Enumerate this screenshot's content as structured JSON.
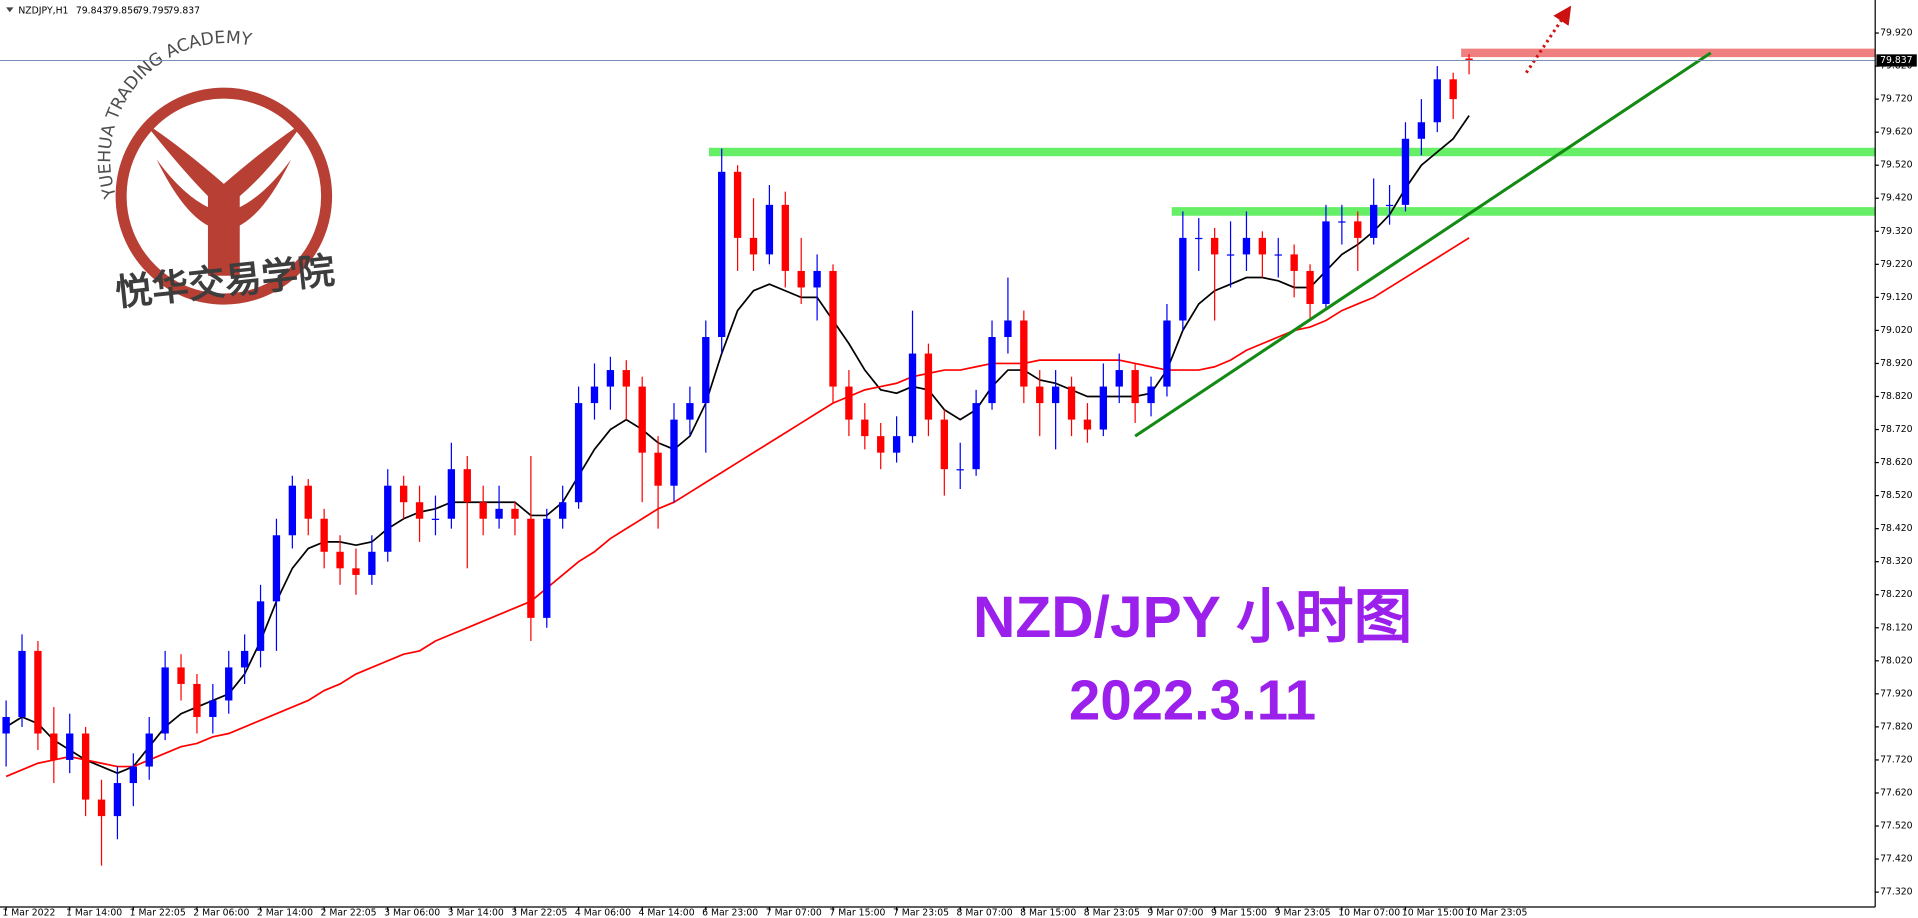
{
  "chart_data": {
    "type": "candlestick",
    "symbol": "NZDJPY,H1",
    "title": "NZD/JPY 小时图",
    "subtitle": "2022.3.11",
    "logo_text": "YUEHUA TRADING ACADEMY",
    "logo_name": "悦华交易学院",
    "up_color": "#0000ff",
    "down_color": "#ff0000",
    "categories": [
      "1 Mar 2022",
      null,
      null,
      null,
      "1 Mar 14:00",
      null,
      null,
      null,
      "1 Mar 22:05",
      null,
      null,
      null,
      "2 Mar 06:00",
      null,
      null,
      null,
      "2 Mar 14:00",
      null,
      null,
      null,
      "2 Mar 22:05",
      null,
      null,
      null,
      "3 Mar 06:00",
      null,
      null,
      null,
      "3 Mar 14:00",
      null,
      null,
      null,
      "3 Mar 22:05",
      null,
      null,
      null,
      "4 Mar 06:00",
      null,
      null,
      null,
      "4 Mar 14:00",
      null,
      null,
      null,
      "6 Mar 23:00",
      null,
      null,
      null,
      "7 Mar 07:00",
      null,
      null,
      null,
      "7 Mar 15:00",
      null,
      null,
      null,
      "7 Mar 23:05",
      null,
      null,
      null,
      "8 Mar 07:00",
      null,
      null,
      null,
      "8 Mar 15:00",
      null,
      null,
      null,
      "8 Mar 23:05",
      null,
      null,
      null,
      "9 Mar 07:00",
      null,
      null,
      null,
      "9 Mar 15:00",
      null,
      null,
      null,
      "9 Mar 23:05",
      null,
      null,
      null,
      "10 Mar 07:00",
      null,
      null,
      null,
      "10 Mar 15:00",
      null,
      null,
      null,
      "10 Mar 23:05"
    ],
    "ohlc": [
      [
        77.8,
        77.9,
        77.7,
        77.85
      ],
      [
        77.85,
        78.1,
        77.82,
        78.05
      ],
      [
        78.05,
        78.08,
        77.75,
        77.8
      ],
      [
        77.8,
        77.88,
        77.65,
        77.72
      ],
      [
        77.72,
        77.86,
        77.68,
        77.8
      ],
      [
        77.8,
        77.82,
        77.55,
        77.6
      ],
      [
        77.6,
        77.66,
        77.4,
        77.55
      ],
      [
        77.55,
        77.7,
        77.48,
        77.65
      ],
      [
        77.65,
        77.74,
        77.58,
        77.7
      ],
      [
        77.7,
        77.85,
        77.66,
        77.8
      ],
      [
        77.8,
        78.05,
        77.78,
        78.0
      ],
      [
        78.0,
        78.04,
        77.9,
        77.95
      ],
      [
        77.95,
        77.98,
        77.8,
        77.85
      ],
      [
        77.85,
        77.95,
        77.8,
        77.9
      ],
      [
        77.9,
        78.05,
        77.86,
        78.0
      ],
      [
        78.0,
        78.1,
        77.95,
        78.05
      ],
      [
        78.05,
        78.25,
        78.0,
        78.2
      ],
      [
        78.2,
        78.45,
        78.05,
        78.4
      ],
      [
        78.4,
        78.58,
        78.36,
        78.55
      ],
      [
        78.55,
        78.57,
        78.4,
        78.45
      ],
      [
        78.45,
        78.48,
        78.3,
        78.35
      ],
      [
        78.35,
        78.4,
        78.25,
        78.3
      ],
      [
        78.3,
        78.36,
        78.22,
        78.28
      ],
      [
        78.28,
        78.4,
        78.25,
        78.35
      ],
      [
        78.35,
        78.6,
        78.32,
        78.55
      ],
      [
        78.55,
        78.58,
        78.45,
        78.5
      ],
      [
        78.5,
        78.55,
        78.38,
        78.45
      ],
      [
        78.45,
        78.52,
        78.4,
        78.45
      ],
      [
        78.45,
        78.68,
        78.42,
        78.6
      ],
      [
        78.6,
        78.64,
        78.3,
        78.5
      ],
      [
        78.5,
        78.55,
        78.4,
        78.45
      ],
      [
        78.45,
        78.55,
        78.42,
        78.48
      ],
      [
        78.48,
        78.5,
        78.4,
        78.45
      ],
      [
        78.45,
        78.64,
        78.08,
        78.15
      ],
      [
        78.15,
        78.48,
        78.12,
        78.45
      ],
      [
        78.45,
        78.55,
        78.42,
        78.5
      ],
      [
        78.5,
        78.85,
        78.48,
        78.8
      ],
      [
        78.8,
        78.92,
        78.75,
        78.85
      ],
      [
        78.85,
        78.94,
        78.78,
        78.9
      ],
      [
        78.9,
        78.93,
        78.75,
        78.85
      ],
      [
        78.85,
        78.88,
        78.5,
        78.65
      ],
      [
        78.65,
        78.7,
        78.42,
        78.55
      ],
      [
        78.55,
        78.8,
        78.5,
        78.75
      ],
      [
        78.75,
        78.85,
        78.7,
        78.8
      ],
      [
        78.8,
        79.05,
        78.65,
        79.0
      ],
      [
        79.0,
        79.57,
        78.95,
        79.5
      ],
      [
        79.5,
        79.52,
        79.2,
        79.3
      ],
      [
        79.3,
        79.42,
        79.2,
        79.25
      ],
      [
        79.25,
        79.46,
        79.22,
        79.4
      ],
      [
        79.4,
        79.44,
        79.15,
        79.2
      ],
      [
        79.2,
        79.3,
        79.1,
        79.15
      ],
      [
        79.15,
        79.25,
        79.05,
        79.2
      ],
      [
        79.2,
        79.22,
        78.8,
        78.85
      ],
      [
        78.85,
        78.9,
        78.7,
        78.75
      ],
      [
        78.75,
        78.8,
        78.66,
        78.7
      ],
      [
        78.7,
        78.74,
        78.6,
        78.65
      ],
      [
        78.65,
        78.76,
        78.62,
        78.7
      ],
      [
        78.7,
        79.08,
        78.68,
        78.95
      ],
      [
        78.95,
        78.98,
        78.7,
        78.75
      ],
      [
        78.75,
        78.78,
        78.52,
        78.6
      ],
      [
        78.6,
        78.68,
        78.54,
        78.6
      ],
      [
        78.6,
        78.84,
        78.58,
        78.8
      ],
      [
        78.8,
        79.05,
        78.78,
        79.0
      ],
      [
        79.0,
        79.18,
        78.95,
        79.05
      ],
      [
        79.05,
        79.08,
        78.8,
        78.85
      ],
      [
        78.85,
        78.9,
        78.7,
        78.8
      ],
      [
        78.8,
        78.9,
        78.66,
        78.85
      ],
      [
        78.85,
        78.88,
        78.7,
        78.75
      ],
      [
        78.75,
        78.8,
        78.68,
        78.72
      ],
      [
        78.72,
        78.92,
        78.7,
        78.85
      ],
      [
        78.85,
        78.95,
        78.8,
        78.9
      ],
      [
        78.9,
        78.92,
        78.74,
        78.8
      ],
      [
        78.8,
        78.88,
        78.76,
        78.85
      ],
      [
        78.85,
        79.1,
        78.82,
        79.05
      ],
      [
        79.05,
        79.38,
        79.02,
        79.3
      ],
      [
        79.3,
        79.36,
        79.2,
        79.3
      ],
      [
        79.3,
        79.33,
        79.05,
        79.25
      ],
      [
        79.25,
        79.35,
        79.15,
        79.25
      ],
      [
        79.25,
        79.38,
        79.2,
        79.3
      ],
      [
        79.3,
        79.32,
        79.18,
        79.25
      ],
      [
        79.25,
        79.3,
        79.18,
        79.25
      ],
      [
        79.25,
        79.28,
        79.12,
        79.2
      ],
      [
        79.2,
        79.22,
        79.05,
        79.1
      ],
      [
        79.1,
        79.4,
        79.08,
        79.35
      ],
      [
        79.35,
        79.4,
        79.28,
        79.35
      ],
      [
        79.35,
        79.38,
        79.2,
        79.3
      ],
      [
        79.3,
        79.48,
        79.28,
        79.4
      ],
      [
        79.4,
        79.46,
        79.34,
        79.4
      ],
      [
        79.4,
        79.65,
        79.38,
        79.6
      ],
      [
        79.6,
        79.72,
        79.55,
        79.65
      ],
      [
        79.65,
        79.82,
        79.62,
        79.78
      ],
      [
        79.78,
        79.8,
        79.66,
        79.72
      ],
      [
        79.843,
        79.856,
        79.795,
        79.837
      ]
    ],
    "series": [
      {
        "color": "#000000",
        "values": [
          77.82,
          77.85,
          77.83,
          77.78,
          77.75,
          77.72,
          77.7,
          77.68,
          77.7,
          77.76,
          77.82,
          77.86,
          77.88,
          77.9,
          77.92,
          77.98,
          78.08,
          78.2,
          78.3,
          78.36,
          78.38,
          78.38,
          78.37,
          78.38,
          78.42,
          78.45,
          78.47,
          78.48,
          78.5,
          78.5,
          78.5,
          78.5,
          78.5,
          78.46,
          78.46,
          78.5,
          78.58,
          78.66,
          78.72,
          78.75,
          78.72,
          78.68,
          78.66,
          78.7,
          78.8,
          78.95,
          79.08,
          79.14,
          79.16,
          79.14,
          79.12,
          79.12,
          79.05,
          78.98,
          78.9,
          78.84,
          78.83,
          78.85,
          78.84,
          78.78,
          78.75,
          78.78,
          78.85,
          78.9,
          78.9,
          78.87,
          78.86,
          78.84,
          78.82,
          78.82,
          78.82,
          78.82,
          78.83,
          78.9,
          79.02,
          79.1,
          79.14,
          79.16,
          79.18,
          79.18,
          79.17,
          79.15,
          79.15,
          79.2,
          79.25,
          79.28,
          79.32,
          79.37,
          79.45,
          79.52,
          79.56,
          79.6,
          79.67
        ]
      },
      {
        "color": "#ff0000",
        "values": [
          77.67,
          77.69,
          77.71,
          77.72,
          77.73,
          77.72,
          77.71,
          77.7,
          77.7,
          77.72,
          77.74,
          77.76,
          77.77,
          77.79,
          77.8,
          77.82,
          77.84,
          77.86,
          77.88,
          77.9,
          77.93,
          77.95,
          77.98,
          78.0,
          78.02,
          78.04,
          78.05,
          78.08,
          78.1,
          78.12,
          78.14,
          78.16,
          78.18,
          78.2,
          78.24,
          78.28,
          78.32,
          78.35,
          78.39,
          78.42,
          78.45,
          78.48,
          78.5,
          78.53,
          78.56,
          78.59,
          78.62,
          78.65,
          78.68,
          78.71,
          78.74,
          78.77,
          78.8,
          78.82,
          78.84,
          78.85,
          78.86,
          78.88,
          78.89,
          78.9,
          78.9,
          78.91,
          78.92,
          78.92,
          78.92,
          78.93,
          78.93,
          78.93,
          78.93,
          78.93,
          78.93,
          78.92,
          78.91,
          78.9,
          78.9,
          78.9,
          78.91,
          78.93,
          78.96,
          78.98,
          79.0,
          79.02,
          79.03,
          79.05,
          79.08,
          79.1,
          79.12,
          79.15,
          79.18,
          79.21,
          79.24,
          79.27,
          79.3
        ]
      }
    ],
    "levels": [
      {
        "value": 79.56,
        "from": 44.2,
        "color": "#66ee66"
      },
      {
        "value": 79.38,
        "from": 73.3,
        "color": "#66ee66"
      },
      {
        "value": 79.86,
        "from": 91.5,
        "color": "#f08080"
      }
    ],
    "trendline": {
      "x": [
        71,
        107.2
      ],
      "y": [
        78.7,
        79.86
      ],
      "color": "#138a13"
    },
    "arrow": {
      "x": [
        95.6,
        98.1
      ],
      "y": [
        79.8,
        79.98
      ],
      "color": "#cc1111"
    },
    "ylim": [
      77.275,
      80.02
    ],
    "yticks": [
      {
        "value": 77.32,
        "label": "77.320"
      },
      {
        "value": 77.42,
        "label": "77.420"
      },
      {
        "value": 77.52,
        "label": "77.520"
      },
      {
        "value": 77.62,
        "label": "77.620"
      },
      {
        "value": 77.72,
        "label": "77.720"
      },
      {
        "value": 77.82,
        "label": "77.820"
      },
      {
        "value": 77.92,
        "label": "77.920"
      },
      {
        "value": 78.02,
        "label": "78.020"
      },
      {
        "value": 78.12,
        "label": "78.120"
      },
      {
        "value": 78.22,
        "label": "78.220"
      },
      {
        "value": 78.32,
        "label": "78.320"
      },
      {
        "value": 78.42,
        "label": "78.420"
      },
      {
        "value": 78.52,
        "label": "78.520"
      },
      {
        "value": 78.62,
        "label": "78.620"
      },
      {
        "value": 78.72,
        "label": "78.720"
      },
      {
        "value": 78.82,
        "label": "78.820"
      },
      {
        "value": 78.92,
        "label": "78.920"
      },
      {
        "value": 79.02,
        "label": "79.020"
      },
      {
        "value": 79.12,
        "label": "79.120"
      },
      {
        "value": 79.22,
        "label": "79.220"
      },
      {
        "value": 79.32,
        "label": "79.320"
      },
      {
        "value": 79.42,
        "label": "79.420"
      },
      {
        "value": 79.52,
        "label": "79.520"
      },
      {
        "value": 79.62,
        "label": "79.620"
      },
      {
        "value": 79.72,
        "label": "79.720"
      },
      {
        "value": 79.82,
        "label": "79.820"
      },
      {
        "value": 79.92,
        "label": "79.920"
      }
    ],
    "grid": false
  }
}
